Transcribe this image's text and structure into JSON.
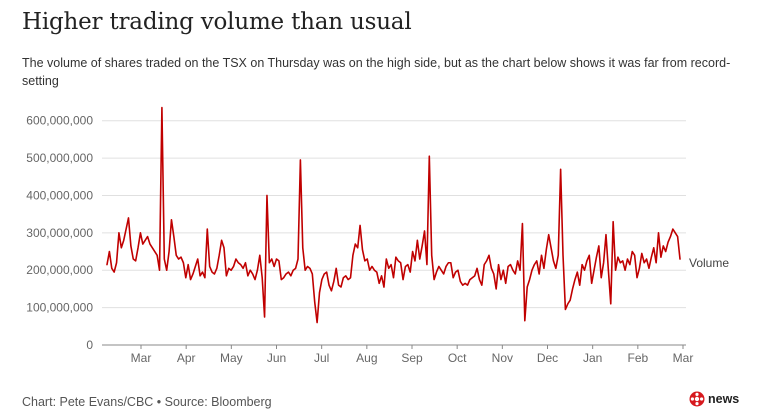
{
  "header": {
    "title": "Higher trading volume than usual",
    "subtitle": "The volume of shares traded on the TSX on Thursday was on the high side, but as the chart below shows it was far from record-setting"
  },
  "footer": {
    "credit": "Chart: Pete Evans/CBC • Source: Bloomberg",
    "logo_text": "news"
  },
  "colors": {
    "line": "#c00000",
    "grid": "#e0e0e0",
    "axis": "#888888"
  },
  "chart_data": {
    "type": "line",
    "title": "Higher trading volume than usual",
    "ylim": [
      0,
      650000000
    ],
    "yticks": [
      0,
      100000000,
      200000000,
      300000000,
      400000000,
      500000000,
      600000000
    ],
    "ytick_labels": [
      "0",
      "100,000,000",
      "200,000,000",
      "300,000,000",
      "400,000,000",
      "500,000,000",
      "600,000,000"
    ],
    "xtick_labels": [
      "Mar",
      "Apr",
      "May",
      "Jun",
      "Jul",
      "Aug",
      "Sep",
      "Oct",
      "Nov",
      "Dec",
      "Jan",
      "Feb",
      "Mar"
    ],
    "grid": true,
    "series": [
      {
        "name": "Volume",
        "color": "#c00000",
        "x_range": [
          "Feb",
          "Mar"
        ],
        "values": [
          215000000,
          250000000,
          205000000,
          195000000,
          220000000,
          300000000,
          260000000,
          280000000,
          310000000,
          340000000,
          265000000,
          230000000,
          225000000,
          260000000,
          300000000,
          270000000,
          280000000,
          290000000,
          270000000,
          260000000,
          250000000,
          240000000,
          200000000,
          635000000,
          230000000,
          200000000,
          250000000,
          335000000,
          290000000,
          240000000,
          230000000,
          235000000,
          220000000,
          180000000,
          215000000,
          175000000,
          190000000,
          210000000,
          230000000,
          185000000,
          195000000,
          180000000,
          310000000,
          210000000,
          195000000,
          190000000,
          205000000,
          240000000,
          280000000,
          260000000,
          185000000,
          205000000,
          200000000,
          210000000,
          230000000,
          220000000,
          215000000,
          205000000,
          220000000,
          185000000,
          200000000,
          190000000,
          175000000,
          200000000,
          240000000,
          180000000,
          75000000,
          400000000,
          220000000,
          230000000,
          210000000,
          230000000,
          225000000,
          175000000,
          180000000,
          190000000,
          195000000,
          185000000,
          200000000,
          205000000,
          230000000,
          495000000,
          260000000,
          200000000,
          210000000,
          205000000,
          190000000,
          115000000,
          60000000,
          140000000,
          175000000,
          190000000,
          195000000,
          160000000,
          145000000,
          170000000,
          205000000,
          160000000,
          155000000,
          180000000,
          185000000,
          175000000,
          180000000,
          240000000,
          270000000,
          260000000,
          320000000,
          255000000,
          225000000,
          230000000,
          200000000,
          210000000,
          200000000,
          195000000,
          165000000,
          185000000,
          155000000,
          230000000,
          205000000,
          215000000,
          180000000,
          235000000,
          225000000,
          220000000,
          175000000,
          210000000,
          215000000,
          195000000,
          250000000,
          225000000,
          280000000,
          230000000,
          265000000,
          305000000,
          215000000,
          505000000,
          240000000,
          175000000,
          195000000,
          210000000,
          200000000,
          190000000,
          210000000,
          220000000,
          220000000,
          180000000,
          195000000,
          200000000,
          170000000,
          160000000,
          165000000,
          160000000,
          175000000,
          180000000,
          185000000,
          205000000,
          175000000,
          160000000,
          215000000,
          225000000,
          240000000,
          205000000,
          190000000,
          150000000,
          215000000,
          175000000,
          200000000,
          165000000,
          210000000,
          215000000,
          200000000,
          190000000,
          225000000,
          200000000,
          325000000,
          65000000,
          155000000,
          175000000,
          200000000,
          215000000,
          225000000,
          190000000,
          240000000,
          205000000,
          255000000,
          295000000,
          260000000,
          225000000,
          205000000,
          240000000,
          470000000,
          240000000,
          95000000,
          110000000,
          120000000,
          150000000,
          175000000,
          195000000,
          160000000,
          215000000,
          200000000,
          225000000,
          240000000,
          165000000,
          200000000,
          235000000,
          265000000,
          180000000,
          220000000,
          295000000,
          200000000,
          110000000,
          330000000,
          200000000,
          235000000,
          220000000,
          225000000,
          200000000,
          230000000,
          215000000,
          250000000,
          240000000,
          180000000,
          205000000,
          245000000,
          220000000,
          230000000,
          205000000,
          235000000,
          260000000,
          220000000,
          300000000,
          235000000,
          265000000,
          250000000,
          275000000,
          290000000,
          310000000,
          300000000,
          290000000,
          230000000
        ]
      }
    ]
  }
}
